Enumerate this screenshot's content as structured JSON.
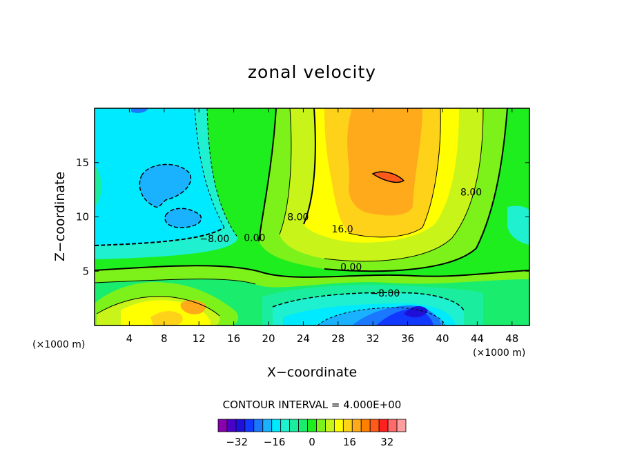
{
  "chart_data": {
    "type": "heatmap",
    "title": "zonal velocity",
    "xlabel": "X−coordinate",
    "ylabel": "Z−coordinate",
    "x_unit_left": "(×1000 m)",
    "x_unit_right": "(×1000 m)",
    "xlim": [
      0,
      50
    ],
    "ylim": [
      0,
      20
    ],
    "x_ticks": [
      4,
      8,
      12,
      16,
      20,
      24,
      28,
      32,
      36,
      40,
      44,
      48
    ],
    "y_ticks": [
      5,
      10,
      15
    ],
    "contour_interval_label": "CONTOUR INTERVAL = 4.000E+00",
    "contour_interval": 4,
    "colorbar": {
      "levels": [
        -40,
        -36,
        -32,
        -28,
        -24,
        -20,
        -16,
        -12,
        -8,
        -4,
        0,
        4,
        8,
        12,
        16,
        20,
        24,
        28,
        32,
        36,
        40
      ],
      "colors": [
        "#8a00b0",
        "#4b00c8",
        "#1e10d8",
        "#1038ff",
        "#1a78ff",
        "#1ab2ff",
        "#00eaff",
        "#1ef0d0",
        "#1aee9e",
        "#1aec6e",
        "#1eee1e",
        "#7cf21a",
        "#c8f41a",
        "#ffff00",
        "#ffd21a",
        "#ffaa1a",
        "#ff8000",
        "#ff5a1a",
        "#ff2020",
        "#ff6a6a",
        "#ff9e9e"
      ],
      "tick_labels": [
        "−32",
        "−16",
        "0",
        "16",
        "32"
      ],
      "tick_values": [
        -32,
        -16,
        0,
        16,
        32
      ]
    },
    "contour_labels": [
      {
        "text": "8.00",
        "x": 23.4,
        "y": 10.0
      },
      {
        "text": "16.0",
        "x": 28.5,
        "y": 8.9
      },
      {
        "text": "8.00",
        "x": 43.3,
        "y": 12.3
      },
      {
        "text": "0.00",
        "x": 29.5,
        "y": 5.4
      },
      {
        "text": "−8.00",
        "x": 33.4,
        "y": 3.0
      },
      {
        "text": "−8.00",
        "x": 13.8,
        "y": 8.0
      },
      {
        "text": "0.00",
        "x": 18.4,
        "y": 8.1
      }
    ],
    "grid": false,
    "legend": "bottom"
  }
}
